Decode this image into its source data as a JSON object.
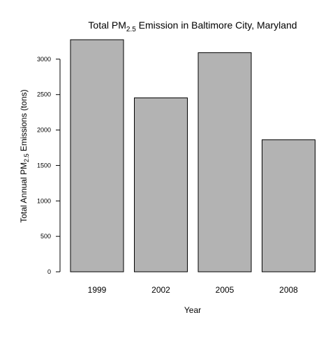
{
  "chart_data": {
    "type": "bar",
    "title_prefix": "Total PM",
    "title_subscript": "2.5",
    "title_suffix": " Emission in Baltimore City, Maryland",
    "xlabel": "Year",
    "ylabel_prefix": "Total Annual PM",
    "ylabel_subscript": "2.5",
    "ylabel_suffix": " Emissions (tons)",
    "categories": [
      "1999",
      "2002",
      "2005",
      "2008"
    ],
    "values": [
      3274,
      2454,
      3091,
      1862
    ],
    "ylim": [
      0,
      3274
    ],
    "yticks": [
      0,
      500,
      1000,
      1500,
      2000,
      2500,
      3000
    ],
    "ytick_labels": [
      "0",
      "500",
      "1000",
      "1500",
      "2000",
      "2500",
      "3000"
    ],
    "bar_color": "#b3b3b3",
    "grid": false,
    "legend": "none"
  }
}
